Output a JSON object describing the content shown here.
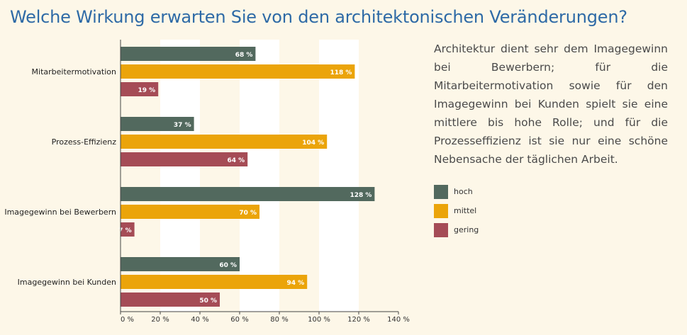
{
  "title": "Welche Wirkung erwarten Sie von den architektonischen Veränderungen?",
  "description": "Architektur dient sehr dem Imagegewinn bei Bewerbern; für die Mitarbeitermotivation sowie für den Imagegewinn bei Kunden spielt sie eine mittlere bis hohe Rolle; und für die Prozesseffizienz ist sie nur eine schöne Nebensache der täglichen Arbeit.",
  "colors": {
    "hoch": "#52695e",
    "mittel": "#eba40a",
    "gering": "#a54c56",
    "band": "#ffffff",
    "background": "#fdf7e8",
    "title": "#2e6aa6"
  },
  "legend": [
    {
      "label": "hoch",
      "color": "#52695e"
    },
    {
      "label": "mittel",
      "color": "#eba40a"
    },
    {
      "label": "gering",
      "color": "#a54c56"
    }
  ],
  "chart_data": {
    "type": "bar",
    "orientation": "horizontal",
    "title": "Welche Wirkung erwarten Sie von den architektonischen Veränderungen?",
    "categories": [
      "Mitarbeitermotivation",
      "Prozess-Effizienz",
      "Imagegewinn bei Bewerbern",
      "Imagegewinn bei Kunden"
    ],
    "series": [
      {
        "name": "hoch",
        "values": [
          68,
          37,
          128,
          60
        ]
      },
      {
        "name": "mittel",
        "values": [
          118,
          104,
          70,
          94
        ]
      },
      {
        "name": "gering",
        "values": [
          19,
          64,
          7,
          50
        ]
      }
    ],
    "value_labels": [
      [
        "68 %",
        "118 %",
        "19 %"
      ],
      [
        "37 %",
        "104 %",
        "64 %"
      ],
      [
        "128 %",
        "70 %",
        "7 %"
      ],
      [
        "60 %",
        "94 %",
        "50 %"
      ]
    ],
    "xlim": [
      0,
      140
    ],
    "xticks": [
      0,
      20,
      40,
      60,
      80,
      100,
      120,
      140
    ],
    "xtick_labels": [
      "0 %",
      "20 %",
      "40 %",
      "60 %",
      "80 %",
      "100 %",
      "120 %",
      "140 %"
    ],
    "xlabel": "",
    "ylabel": "",
    "legend_position": "right"
  }
}
